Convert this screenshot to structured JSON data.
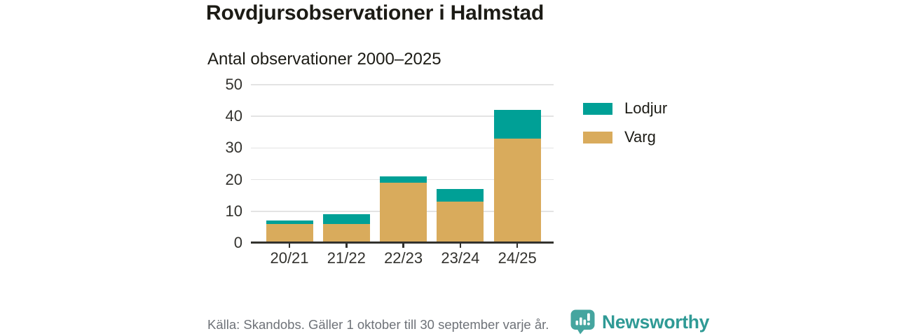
{
  "header": {
    "title": "Rovdjursobservationer i Halmstad",
    "subtitle": "Antal observationer 2000–2025"
  },
  "chart_data": {
    "type": "bar",
    "stacked": true,
    "title": "Rovdjursobservationer i Halmstad",
    "subtitle": "Antal observationer 2000–2025",
    "categories": [
      "20/21",
      "21/22",
      "22/23",
      "23/24",
      "24/25"
    ],
    "series": [
      {
        "name": "Varg",
        "color": "#d9ab5c",
        "values": [
          6,
          6,
          19,
          13,
          33
        ]
      },
      {
        "name": "Lodjur",
        "color": "#00a096",
        "values": [
          1,
          3,
          2,
          4,
          9
        ]
      }
    ],
    "totals": [
      7,
      9,
      21,
      17,
      42
    ],
    "xlabel": "",
    "ylabel": "",
    "ylim": [
      0,
      50
    ],
    "yticks": [
      0,
      10,
      20,
      30,
      40,
      50
    ],
    "grid": true,
    "legend_position": "right"
  },
  "legend": {
    "items": [
      {
        "label": "Lodjur",
        "color": "#00a096"
      },
      {
        "label": "Varg",
        "color": "#d9ab5c"
      }
    ]
  },
  "footer": {
    "source": "Källa: Skandobs. Gäller 1 oktober till 30 september varje år.",
    "brand": "Newsworthy"
  },
  "colors": {
    "lodjur": "#00a096",
    "varg": "#d9ab5c",
    "axis": "#33322e",
    "gridline": "#e3e3e3",
    "text": "#1c1b15",
    "muted_text": "#6e7278",
    "brand_teal": "#2f9a95",
    "brand_icon": "#45a59f"
  }
}
